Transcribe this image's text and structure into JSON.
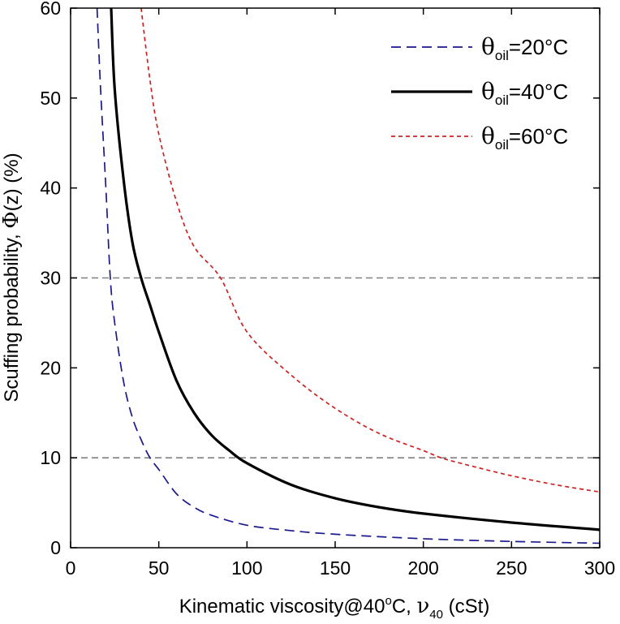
{
  "chart_data": {
    "type": "line",
    "xlabel": {
      "prefix": "Kinematic viscosity@40",
      "sup": "o",
      "mid": "C, ",
      "symbol": "ν",
      "sub": "40",
      "suffix": " (cSt)"
    },
    "ylabel": {
      "prefix": "Scuffing probability, ",
      "symbol": "Φ",
      "suffix": "(z) (%)"
    },
    "xlim": [
      0,
      300
    ],
    "ylim": [
      0,
      60
    ],
    "xticks": [
      "0",
      "50",
      "100",
      "150",
      "200",
      "250",
      "300"
    ],
    "yticks": [
      "0",
      "10",
      "20",
      "30",
      "40",
      "50",
      "60"
    ],
    "grid": false,
    "reference_lines": [
      {
        "y": 30,
        "color": "#808080",
        "style": "dashed"
      },
      {
        "y": 10,
        "color": "#808080",
        "style": "dashed"
      }
    ],
    "legend_position": "top-right",
    "series": [
      {
        "name": "θoil=20°C",
        "legend": {
          "symbol": "θ",
          "sub": "oil",
          "text": "=20°C"
        },
        "color": "#1a1a8c",
        "style": "dashed",
        "x": [
          15,
          17,
          20,
          22.5,
          25,
          30,
          35,
          40,
          45,
          50,
          60,
          70,
          80,
          100,
          125,
          150,
          200,
          250,
          300
        ],
        "y": [
          60,
          51,
          40,
          30,
          25,
          18.5,
          14.5,
          12,
          10,
          8.7,
          6,
          4.5,
          3.6,
          2.5,
          1.9,
          1.5,
          1.0,
          0.7,
          0.5
        ]
      },
      {
        "name": "θoil=40°C",
        "legend": {
          "symbol": "θ",
          "sub": "oil",
          "text": "=40°C"
        },
        "color": "#000000",
        "style": "solid",
        "x": [
          23,
          25,
          30,
          35,
          40,
          45,
          50,
          60,
          70,
          80,
          90,
          100,
          125,
          150,
          175,
          200,
          250,
          300
        ],
        "y": [
          60,
          51,
          41,
          34,
          30,
          27,
          24,
          18.6,
          15,
          12.5,
          10.8,
          9.4,
          7,
          5.5,
          4.5,
          3.8,
          2.8,
          2.0
        ]
      },
      {
        "name": "θoil=60°C",
        "legend": {
          "symbol": "θ",
          "sub": "oil",
          "text": "=60°C"
        },
        "color": "#cc2222",
        "style": "dotted",
        "x": [
          40,
          45,
          50,
          60,
          70,
          85,
          100,
          125,
          150,
          175,
          200,
          210,
          225,
          250,
          275,
          300
        ],
        "y": [
          60,
          52,
          46,
          38.5,
          33.5,
          30,
          24,
          19.2,
          15.5,
          12.7,
          10.8,
          10,
          9.2,
          8,
          7,
          6.2
        ]
      }
    ]
  }
}
